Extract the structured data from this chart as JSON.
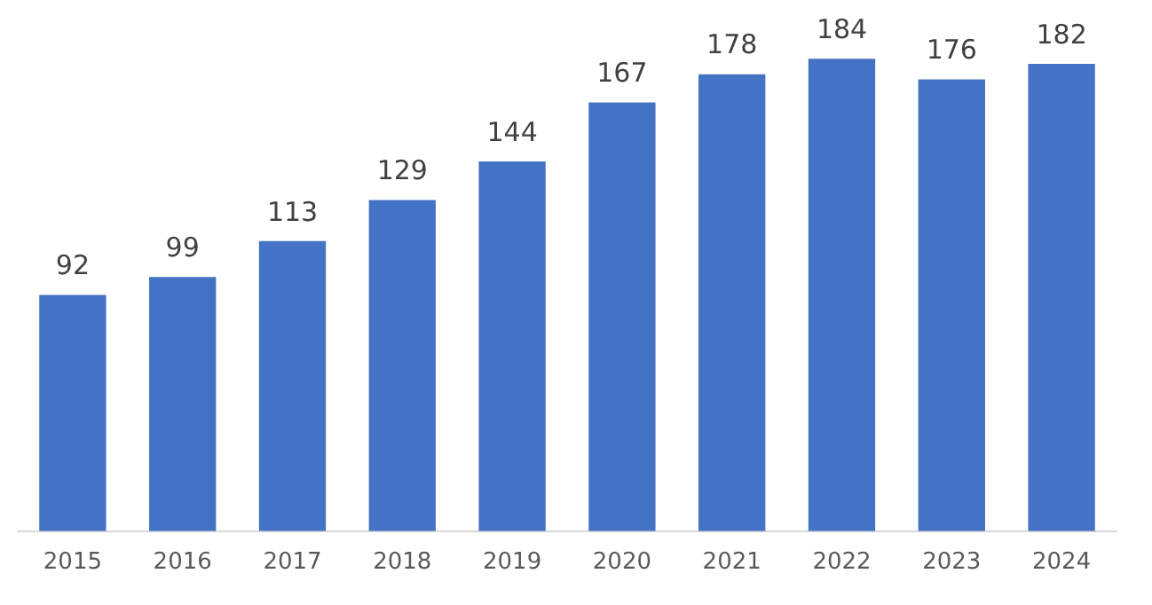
{
  "chart_data": {
    "type": "bar",
    "categories": [
      "2015",
      "2016",
      "2017",
      "2018",
      "2019",
      "2020",
      "2021",
      "2022",
      "2023",
      "2024"
    ],
    "values": [
      92,
      99,
      113,
      129,
      144,
      167,
      178,
      184,
      176,
      182
    ],
    "color": "#4472c4",
    "data_labels": true,
    "grid": false,
    "legend": false,
    "tick_labels": "x"
  }
}
